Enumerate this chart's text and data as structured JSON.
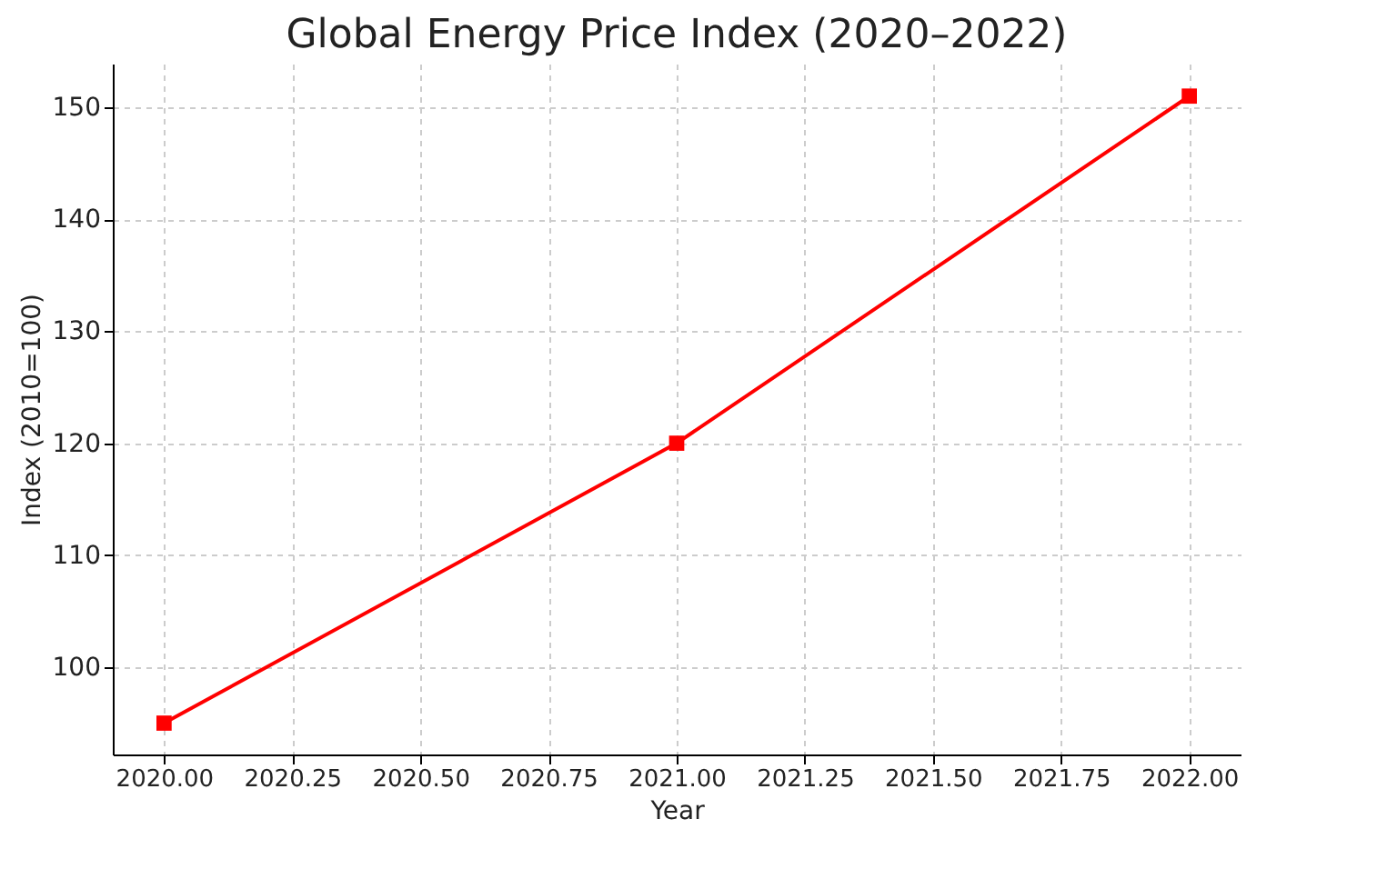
{
  "chart_data": {
    "type": "line",
    "title": "Global Energy Price Index (2020–2022)",
    "xlabel": "Year",
    "ylabel": "Index (2010=100)",
    "x": [
      2020,
      2021,
      2022
    ],
    "series": [
      {
        "color": "#ff0000",
        "values": [
          95,
          120,
          151
        ]
      }
    ],
    "xlim": [
      2019.9,
      2022.1
    ],
    "ylim": [
      92.2,
      153.9
    ],
    "xticks": [
      {
        "value": 2020,
        "label": "2020.00"
      },
      {
        "value": 2020.25,
        "label": "2020.25"
      },
      {
        "value": 2020.5,
        "label": "2020.50"
      },
      {
        "value": 2020.75,
        "label": "2020.75"
      },
      {
        "value": 2021,
        "label": "2021.00"
      },
      {
        "value": 2021.25,
        "label": "2021.25"
      },
      {
        "value": 2021.5,
        "label": "2021.50"
      },
      {
        "value": 2021.75,
        "label": "2021.75"
      },
      {
        "value": 2022,
        "label": "2022.00"
      }
    ],
    "yticks": [
      100,
      110,
      120,
      130,
      140,
      150
    ],
    "grid": true,
    "marker": "square",
    "line_style": "solid"
  }
}
